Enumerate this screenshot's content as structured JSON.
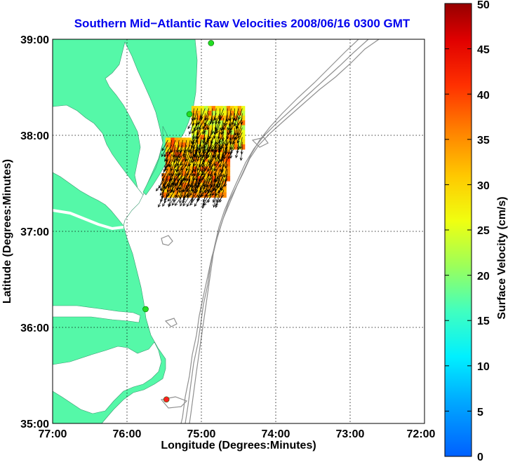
{
  "title": "Southern Mid−Atlantic Raw Velocities 2008/06/16 0300 GMT",
  "xlabel": "Longitude (Degrees:Minutes)",
  "ylabel": "Latitude (Degrees:Minutes)",
  "colorbar_label": "Surface Velocity (cm/s)",
  "colors": {
    "land": "#55f8a8",
    "title": "#0000ee",
    "bathymetry": "#909090",
    "station": "#22dd22",
    "station_alert": "#ff2020"
  },
  "chart_data": {
    "type": "vector-field-map",
    "x_axis": {
      "range": [
        -77,
        -72
      ],
      "ticks": [
        "77:00",
        "76:00",
        "75:00",
        "74:00",
        "73:00",
        "72:00"
      ]
    },
    "y_axis": {
      "range": [
        35,
        39
      ],
      "ticks": [
        "35:00",
        "36:00",
        "37:00",
        "38:00",
        "39:00"
      ]
    },
    "grid": "dotted",
    "colorbar": {
      "min": 0,
      "max": 50,
      "ticks": [
        "0",
        "5",
        "10",
        "15",
        "20",
        "25",
        "30",
        "35",
        "40",
        "45",
        "50"
      ],
      "colormap": "jet"
    },
    "stations": [
      {
        "lon": -74.87,
        "lat": 38.96,
        "color": "green"
      },
      {
        "lon": -75.16,
        "lat": 38.22,
        "color": "green"
      },
      {
        "lon": -75.75,
        "lat": 36.19,
        "color": "green"
      },
      {
        "lon": -75.47,
        "lat": 35.25,
        "color": "red"
      }
    ],
    "vector_clusters": [
      {
        "lon_range": [
          -75.1,
          -74.45
        ],
        "lat_range": [
          37.88,
          38.28
        ],
        "speed_range": [
          22,
          38
        ],
        "direction_deg": 195
      },
      {
        "lon_range": [
          -75.45,
          -74.65
        ],
        "lat_range": [
          37.55,
          37.98
        ],
        "speed_range": [
          28,
          40
        ],
        "direction_deg": 200
      },
      {
        "lon_range": [
          -75.5,
          -74.7
        ],
        "lat_range": [
          37.38,
          37.6
        ],
        "speed_range": [
          30,
          38
        ],
        "direction_deg": 205
      }
    ]
  }
}
